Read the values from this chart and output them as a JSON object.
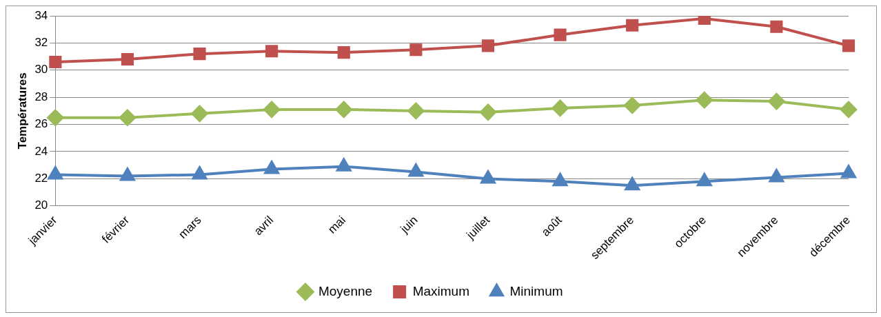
{
  "chart_data": {
    "type": "line",
    "ylabel": "Températures",
    "categories": [
      "janvier",
      "février",
      "mars",
      "avril",
      "mai",
      "juin",
      "juillet",
      "août",
      "septembre",
      "octobre",
      "novembre",
      "décembre"
    ],
    "series": [
      {
        "name": "Moyenne",
        "color": "#9bbb59",
        "marker": "diamond",
        "values": [
          26.5,
          26.5,
          26.8,
          27.1,
          27.1,
          27.0,
          26.9,
          27.2,
          27.4,
          27.8,
          27.7,
          27.1
        ]
      },
      {
        "name": "Maximum",
        "color": "#c0504d",
        "marker": "square",
        "values": [
          30.6,
          30.8,
          31.2,
          31.4,
          31.3,
          31.5,
          31.8,
          32.6,
          33.3,
          33.8,
          33.2,
          31.8
        ]
      },
      {
        "name": "Minimum",
        "color": "#4f81bd",
        "marker": "triangle",
        "values": [
          22.3,
          22.2,
          22.3,
          22.7,
          22.9,
          22.5,
          22.0,
          21.8,
          21.5,
          21.8,
          22.1,
          22.4
        ]
      }
    ],
    "ylim": [
      20,
      34
    ],
    "yticks": [
      20,
      22,
      24,
      26,
      28,
      30,
      32,
      34
    ],
    "grid": "y",
    "legend": "bottom",
    "line_style": "solid"
  }
}
